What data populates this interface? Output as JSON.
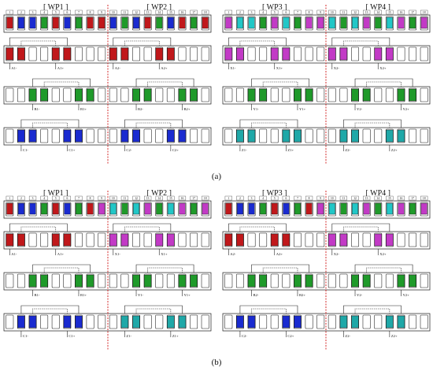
{
  "colors": {
    "phase_A": "#c0181b",
    "phase_B": "#1f9a2a",
    "phase_C": "#1a2bd0",
    "phase_X": "#c23ac6",
    "phase_Y": "#21c7c7",
    "phase_Z": "#1fa8a8",
    "divider": "#d01818",
    "outline": "#1a1a1a"
  },
  "subfigures": [
    {
      "caption": "(a)",
      "panels": [
        {
          "wp_labels": [
            "[ WP1 ]",
            "[ WP2 ]"
          ],
          "slot_colors": [
            "phase_A",
            "phase_C",
            "phase_C",
            "phase_B",
            "phase_A",
            "phase_C",
            "phase_B",
            "phase_A",
            "phase_A",
            "phase_C",
            "phase_B",
            "phase_C",
            "phase_A",
            "phase_B",
            "phase_C",
            "phase_A",
            "phase_B",
            "phase_A"
          ],
          "rows": [
            {
              "phase": "phase_A",
              "coils": [
                {
                  "slot": 1
                },
                {
                  "slot": 5
                },
                {
                  "slot": 10
                },
                {
                  "slot": 14
                }
              ],
              "labels": [
                "A1-",
                "A1+",
                "A2-",
                "A2+"
              ]
            },
            {
              "phase": "phase_B",
              "coils": [
                {
                  "slot": 3
                },
                {
                  "slot": 7
                },
                {
                  "slot": 12
                },
                {
                  "slot": 16
                }
              ],
              "labels": [
                "B1-",
                "B1+",
                "B2-",
                "B2+"
              ]
            },
            {
              "phase": "phase_C",
              "coils": [
                {
                  "slot": 2
                },
                {
                  "slot": 6
                },
                {
                  "slot": 11
                },
                {
                  "slot": 15
                }
              ],
              "labels": [
                "C1-",
                "C1+",
                "C2-",
                "C2+"
              ]
            }
          ]
        },
        {
          "wp_labels": [
            "[ WP3 ]",
            "[ WP4 ]"
          ],
          "slot_colors": [
            "phase_X",
            "phase_Y",
            "phase_Y",
            "phase_B",
            "phase_X",
            "phase_Y",
            "phase_B",
            "phase_X",
            "phase_X",
            "phase_Y",
            "phase_B",
            "phase_Y",
            "phase_X",
            "phase_B",
            "phase_Y",
            "phase_X",
            "phase_B",
            "phase_X"
          ],
          "rows": [
            {
              "phase": "phase_X",
              "coils": [
                {
                  "slot": 1
                },
                {
                  "slot": 5
                },
                {
                  "slot": 10
                },
                {
                  "slot": 14
                }
              ],
              "labels": [
                "X1-",
                "X1+",
                "X2-",
                "X2+"
              ]
            },
            {
              "phase": "phase_B",
              "coils": [
                {
                  "slot": 3
                },
                {
                  "slot": 7
                },
                {
                  "slot": 12
                },
                {
                  "slot": 16
                }
              ],
              "labels": [
                "Y1-",
                "Y1+",
                "Y2-",
                "Y2+"
              ]
            },
            {
              "phase": "phase_Z",
              "coils": [
                {
                  "slot": 2
                },
                {
                  "slot": 6
                },
                {
                  "slot": 11
                },
                {
                  "slot": 15
                }
              ],
              "labels": [
                "Z1-",
                "Z1+",
                "Z2-",
                "Z2+"
              ]
            }
          ]
        }
      ]
    },
    {
      "caption": "(b)",
      "panels": [
        {
          "wp_labels": [
            "[ WP1 ]",
            "[ WP2 ]"
          ],
          "slot_colors": [
            "phase_A",
            "phase_C",
            "phase_C",
            "phase_B",
            "phase_A",
            "phase_C",
            "phase_B",
            "phase_A",
            "phase_X",
            "phase_Y",
            "phase_B",
            "phase_Y",
            "phase_X",
            "phase_B",
            "phase_Y",
            "phase_X",
            "phase_B",
            "phase_X"
          ],
          "rows": [
            {
              "phase": "phase_A",
              "coils": [
                {
                  "slot": 1
                },
                {
                  "slot": 5
                },
                {
                  "slot": 10
                },
                {
                  "slot": 14
                }
              ],
              "labels": [
                "A1-",
                "A1+",
                "X1-",
                "X1+"
              ],
              "second_phase": "phase_X"
            },
            {
              "phase": "phase_B",
              "coils": [
                {
                  "slot": 3
                },
                {
                  "slot": 7
                },
                {
                  "slot": 12
                },
                {
                  "slot": 16
                }
              ],
              "labels": [
                "B1-",
                "B1+",
                "Y1-",
                "Y1+"
              ]
            },
            {
              "phase": "phase_C",
              "coils": [
                {
                  "slot": 2
                },
                {
                  "slot": 6
                },
                {
                  "slot": 11
                },
                {
                  "slot": 15
                }
              ],
              "labels": [
                "C1-",
                "C1+",
                "Z1-",
                "Z1+"
              ],
              "second_phase": "phase_Z"
            }
          ]
        },
        {
          "wp_labels": [
            "[ WP3 ]",
            "[ WP4 ]"
          ],
          "slot_colors": [
            "phase_A",
            "phase_C",
            "phase_C",
            "phase_B",
            "phase_A",
            "phase_C",
            "phase_B",
            "phase_A",
            "phase_X",
            "phase_Y",
            "phase_B",
            "phase_Y",
            "phase_X",
            "phase_B",
            "phase_Y",
            "phase_X",
            "phase_B",
            "phase_X"
          ],
          "rows": [
            {
              "phase": "phase_A",
              "coils": [
                {
                  "slot": 1
                },
                {
                  "slot": 5
                },
                {
                  "slot": 10
                },
                {
                  "slot": 14
                }
              ],
              "labels": [
                "A2-",
                "A2+",
                "X2-",
                "X2+"
              ],
              "second_phase": "phase_X"
            },
            {
              "phase": "phase_B",
              "coils": [
                {
                  "slot": 3
                },
                {
                  "slot": 7
                },
                {
                  "slot": 12
                },
                {
                  "slot": 16
                }
              ],
              "labels": [
                "B2-",
                "B2+",
                "Y2-",
                "Y2+"
              ]
            },
            {
              "phase": "phase_C",
              "coils": [
                {
                  "slot": 2
                },
                {
                  "slot": 6
                },
                {
                  "slot": 11
                },
                {
                  "slot": 15
                }
              ],
              "labels": [
                "C2-",
                "C2+",
                "Z2-",
                "Z2+"
              ],
              "second_phase": "phase_Z"
            }
          ]
        }
      ]
    }
  ]
}
